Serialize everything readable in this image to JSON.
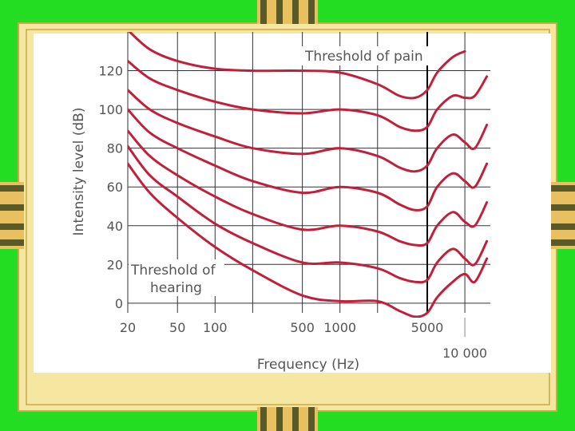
{
  "colors": {
    "background_green": "#22dd22",
    "frame_yellow": "#f5e6a0",
    "frame_line": "#c9a84a",
    "stripe_dark": "#5a5a28",
    "stripe_light": "#e8c060",
    "curve": "#c0203a",
    "grid": "#333333"
  },
  "chart_data": {
    "type": "line",
    "xlabel": "Frequency (Hz)",
    "ylabel": "Intensity level (dB)",
    "x_scale": "log",
    "xlim": [
      20,
      16000
    ],
    "ylim": [
      -5,
      140
    ],
    "grid": true,
    "x_ticks": [
      {
        "value": 20,
        "label": "20"
      },
      {
        "value": 50,
        "label": "50"
      },
      {
        "value": 100,
        "label": "100"
      },
      {
        "value": 500,
        "label": "500"
      },
      {
        "value": 1000,
        "label": "1000"
      },
      {
        "value": 5000,
        "label": "5000"
      },
      {
        "value": 10000,
        "label": "10 000"
      }
    ],
    "y_ticks": [
      0,
      20,
      40,
      60,
      80,
      100,
      120
    ],
    "annotations": {
      "threshold_of_pain": "Threshold of pain",
      "threshold_of_hearing_line1": "Threshold of",
      "threshold_of_hearing_line2": "hearing"
    },
    "series": [
      {
        "x": [
          20,
          30,
          50,
          100,
          200,
          500,
          1000,
          2000,
          3000,
          4000,
          5000,
          6000,
          8000,
          10000
        ],
        "y": [
          141,
          131,
          125,
          121,
          120,
          120,
          119,
          113,
          107,
          106,
          110,
          119,
          127,
          130
        ]
      },
      {
        "x": [
          20,
          30,
          50,
          100,
          200,
          500,
          1000,
          2000,
          3000,
          4000,
          5000,
          6000,
          8000,
          10000,
          12000,
          15000
        ],
        "y": [
          125,
          116,
          110,
          104,
          100,
          98,
          100,
          97,
          91,
          89,
          91,
          100,
          107,
          106,
          107,
          117
        ]
      },
      {
        "x": [
          20,
          30,
          50,
          100,
          200,
          500,
          1000,
          2000,
          3000,
          4000,
          5000,
          6000,
          8000,
          10000,
          12000,
          15000
        ],
        "y": [
          110,
          100,
          93,
          86,
          80,
          77,
          80,
          76,
          70,
          68,
          71,
          80,
          87,
          83,
          80,
          92
        ]
      },
      {
        "x": [
          20,
          30,
          50,
          100,
          200,
          500,
          1000,
          2000,
          3000,
          4000,
          5000,
          6000,
          8000,
          10000,
          12000,
          15000
        ],
        "y": [
          100,
          88,
          80,
          71,
          63,
          57,
          60,
          57,
          51,
          48,
          50,
          60,
          67,
          63,
          60,
          72
        ]
      },
      {
        "x": [
          20,
          30,
          50,
          100,
          200,
          500,
          1000,
          2000,
          3000,
          4000,
          5000,
          6000,
          8000,
          10000,
          12000,
          15000
        ],
        "y": [
          89,
          76,
          66,
          55,
          46,
          38,
          40,
          37,
          32,
          30,
          31,
          40,
          47,
          42,
          40,
          52
        ]
      },
      {
        "x": [
          20,
          30,
          50,
          100,
          200,
          500,
          1000,
          2000,
          3000,
          4000,
          5000,
          6000,
          8000,
          10000,
          12000,
          15000
        ],
        "y": [
          81,
          66,
          55,
          41,
          31,
          21,
          21,
          18,
          13,
          11,
          12,
          21,
          28,
          23,
          20,
          32
        ]
      },
      {
        "x": [
          20,
          30,
          50,
          100,
          200,
          500,
          1000,
          2000,
          3000,
          4000,
          5000,
          6000,
          8000,
          10000,
          12000,
          15000
        ],
        "y": [
          72,
          57,
          44,
          29,
          17,
          4,
          1,
          1,
          -4,
          -7,
          -5,
          3,
          11,
          15,
          11,
          23
        ]
      }
    ]
  }
}
